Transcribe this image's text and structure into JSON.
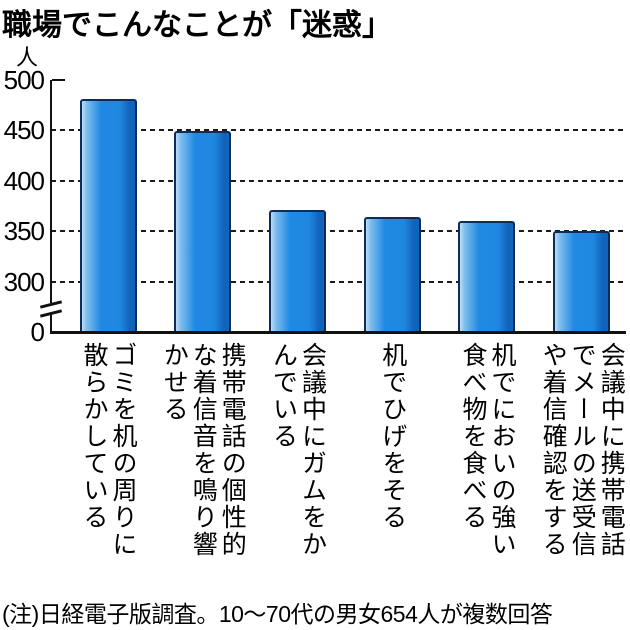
{
  "title": "職場でこんなことが「迷惑」",
  "note": "(注)日経電子版調査。10～70代の男女654人が複数回答",
  "chart_data": {
    "type": "bar",
    "title": "職場でこんなことが「迷惑」",
    "ylabel": "人",
    "categories": [
      "ゴミを机の周りに散らかしている",
      "携帯電話の個性的な着信音を鳴り響かせる",
      "会議中にガムをかんでいる",
      "机でひげをそる",
      "机でにおいの強い食べ物を食べる",
      "会議中に携帯電話でメールの送受信や着信確認をする"
    ],
    "category_lines": [
      [
        "ゴミを机の周りに",
        "散らかしている"
      ],
      [
        "携帯電話の個性的",
        "な着信音を鳴り響",
        "かせる"
      ],
      [
        "会議中にガムをか",
        "んでいる"
      ],
      [
        "机でひげをそる"
      ],
      [
        "机でにおいの強い",
        "食べ物を食べる"
      ],
      [
        "会議中に携帯電話",
        "でメールの送受信",
        "や着信確認をする"
      ]
    ],
    "values": [
      481,
      449,
      371,
      364,
      360,
      350
    ],
    "yticks": [
      500,
      450,
      400,
      350,
      300,
      0
    ],
    "gridlines_at": [
      450,
      400,
      350,
      300
    ],
    "ylim_display": [
      300,
      500
    ],
    "axis_break_between": [
      0,
      300
    ],
    "grid": "horizontal-dashed",
    "legend": "none",
    "bar_color_main": "#1e87e0",
    "bar_color_highlight": "#8cc3ef",
    "bar_color_shade": "#1264ba",
    "bar_border_color": "#0c2c5c",
    "axis_color": "#111111"
  }
}
